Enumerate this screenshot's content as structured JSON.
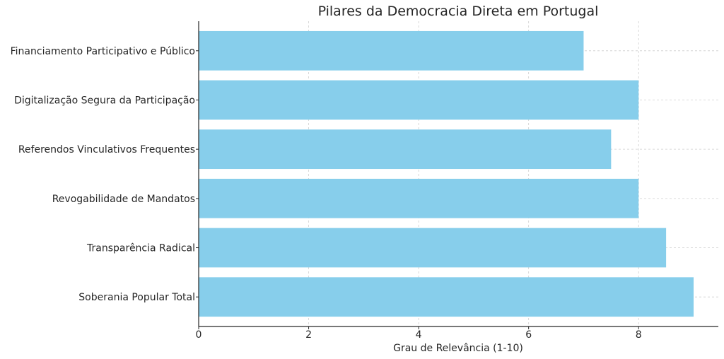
{
  "chart_data": {
    "type": "bar",
    "orientation": "horizontal",
    "title": "Pilares da Democracia Direta em Portugal",
    "xlabel": "Grau de Relevância (1-10)",
    "ylabel": "",
    "categories": [
      "Soberania Popular Total",
      "Transparência Radical",
      "Revogabilidade de Mandatos",
      "Referendos Vinculativos Frequentes",
      "Digitalização Segura da Participação",
      "Financiamento Participativo e Público"
    ],
    "values": [
      9,
      8.5,
      8,
      7.5,
      8,
      7
    ],
    "xlim": [
      0,
      9.45
    ],
    "xticks": [
      "0",
      "2",
      "4",
      "6",
      "8"
    ],
    "bar_color": "#87ceeb",
    "grid": true
  }
}
